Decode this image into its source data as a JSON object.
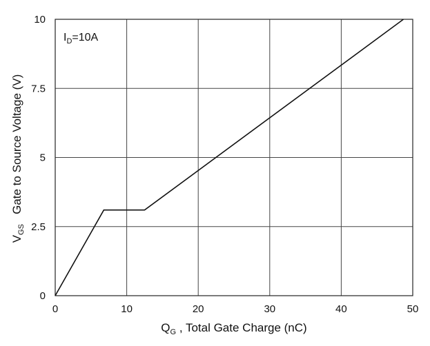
{
  "chart_data": {
    "type": "line",
    "title": "",
    "annotation": {
      "main": "I",
      "sub": "D",
      "rest": "=10A"
    },
    "xlabel": {
      "main": "Q",
      "sub": "G",
      "rest": " , Total Gate Charge (nC)"
    },
    "ylabel": {
      "main": "V",
      "sub": "GS",
      "rest": "   Gate to Source Voltage (V)"
    },
    "xlim": [
      0,
      50
    ],
    "ylim": [
      0,
      10
    ],
    "x_ticks": [
      0,
      10,
      20,
      30,
      40,
      50
    ],
    "x_tick_labels": [
      "0",
      "10",
      "20",
      "30",
      "40",
      "50"
    ],
    "y_ticks": [
      0,
      2.5,
      5,
      7.5,
      10
    ],
    "y_tick_labels": [
      "0",
      "2.5",
      "5",
      "7.5",
      "10"
    ],
    "grid": true,
    "series": [
      {
        "x": [
          0,
          6.8,
          12.5,
          48.7
        ],
        "y": [
          0,
          3.1,
          3.1,
          10
        ],
        "color": "#111111"
      }
    ]
  }
}
